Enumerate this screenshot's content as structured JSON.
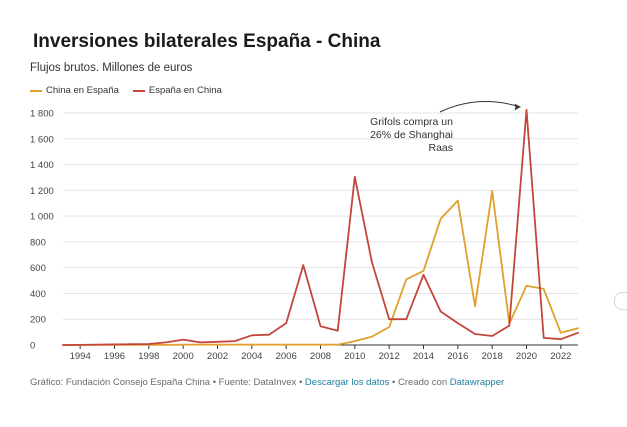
{
  "header": {
    "title": "Inversiones bilaterales España - China",
    "subtitle": "Flujos brutos. Millones de euros"
  },
  "legend": {
    "items": [
      {
        "label": "China en España",
        "color": "#e0a02c"
      },
      {
        "label": "España en China",
        "color": "#c4453a"
      }
    ]
  },
  "annotation": {
    "lines": [
      "Grifols compra un",
      "26% de Shanghai",
      "Raas"
    ]
  },
  "footer": {
    "source": "Gráfico: Fundación Consejo España China • Fuente: DataInvex • ",
    "download_label": "Descargar los datos",
    "created": " • Creado con ",
    "tool_label": "Datawrapper"
  },
  "chart_data": {
    "type": "line",
    "title": "Inversiones bilaterales España - China",
    "subtitle": "Flujos brutos. Millones de euros",
    "xlabel": "",
    "ylabel": "",
    "x": [
      1993,
      1994,
      1995,
      1996,
      1997,
      1998,
      1999,
      2000,
      2001,
      2002,
      2003,
      2004,
      2005,
      2006,
      2007,
      2008,
      2009,
      2010,
      2011,
      2012,
      2013,
      2014,
      2015,
      2016,
      2017,
      2018,
      2019,
      2020,
      2021,
      2022,
      2023
    ],
    "xticks": [
      1994,
      1996,
      1998,
      2000,
      2002,
      2004,
      2006,
      2008,
      2010,
      2012,
      2014,
      2016,
      2018,
      2020,
      2022
    ],
    "xlim": [
      1993,
      2023
    ],
    "ylim": [
      0,
      1800
    ],
    "yticks": [
      0,
      200,
      400,
      600,
      800,
      1000,
      1200,
      1400,
      1600,
      1800
    ],
    "ytick_labels": [
      "0",
      "200",
      "400",
      "600",
      "800",
      "1 000",
      "1 200",
      "1 400",
      "1 600",
      "1 800"
    ],
    "grid": true,
    "legend_position": "top-left",
    "series": [
      {
        "name": "China en España",
        "color": "#e0a02c",
        "values": [
          0,
          0,
          1,
          1,
          1,
          1,
          1,
          2,
          2,
          2,
          2,
          2,
          2,
          2,
          2,
          2,
          2,
          30,
          65,
          140,
          510,
          575,
          980,
          1120,
          300,
          1195,
          165,
          460,
          435,
          95,
          130
        ]
      },
      {
        "name": "España en China",
        "color": "#c4453a",
        "values": [
          0,
          1,
          3,
          5,
          6,
          8,
          20,
          42,
          20,
          25,
          30,
          75,
          80,
          170,
          620,
          145,
          110,
          1305,
          640,
          200,
          200,
          545,
          260,
          170,
          85,
          70,
          150,
          1825,
          55,
          45,
          95
        ]
      }
    ],
    "annotations": [
      {
        "text": "Grifols compra un 26% de Shanghai Raas",
        "x": 2020,
        "y": 1825
      }
    ]
  }
}
